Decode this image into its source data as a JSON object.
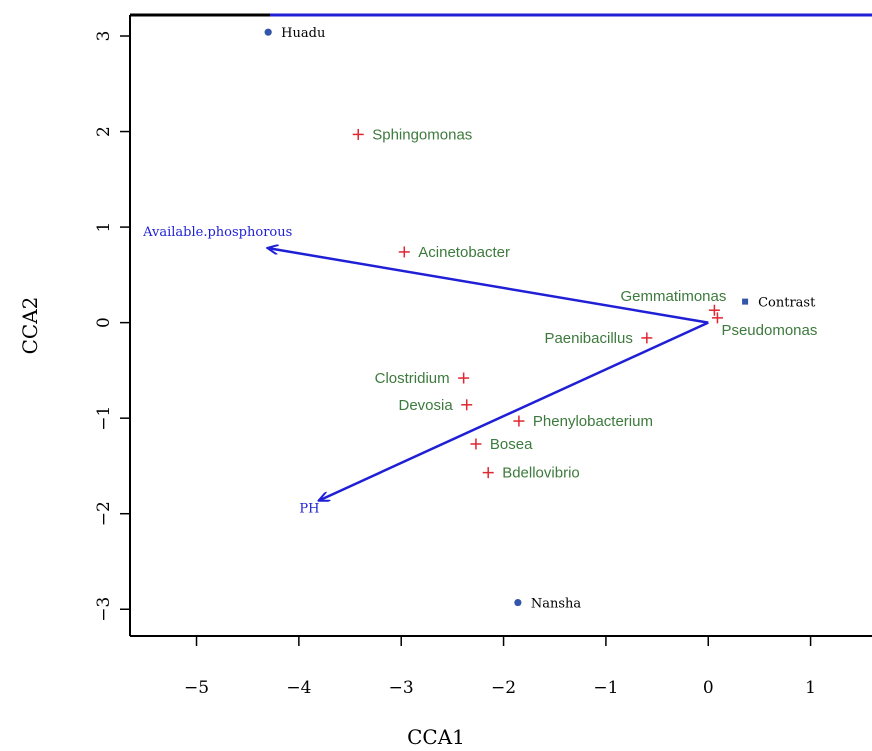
{
  "chart_data": {
    "type": "scatter",
    "title": "",
    "xlabel": "CCA1",
    "ylabel": "CCA2",
    "xlim": [
      -5.65,
      1.6
    ],
    "ylim": [
      -3.28,
      3.22
    ],
    "xticks": [
      -5,
      -4,
      -3,
      -2,
      -1,
      0,
      1
    ],
    "yticks": [
      -3,
      -2,
      -1,
      0,
      1,
      2,
      3
    ],
    "grid": false,
    "colors": {
      "species_marker": "#e0262f",
      "species_text": "#3d7a3d",
      "site_marker": "#3355aa",
      "site_text": "#000000",
      "arrow": "#1f1fd6",
      "axes": "#000000",
      "top_border": "#1f1fd6"
    },
    "species": [
      {
        "label": "Sphingomonas",
        "x": -3.42,
        "y": 1.97,
        "label_side": "right"
      },
      {
        "label": "Acinetobacter",
        "x": -2.97,
        "y": 0.74,
        "label_side": "right"
      },
      {
        "label": "Gemmatimonas",
        "x": 0.06,
        "y": 0.13,
        "label_side": "above-left"
      },
      {
        "label": "Pseudomonas",
        "x": 0.09,
        "y": 0.05,
        "label_side": "below-right"
      },
      {
        "label": "Paenibacillus",
        "x": -0.6,
        "y": -0.16,
        "label_side": "left"
      },
      {
        "label": "Clostridium",
        "x": -2.39,
        "y": -0.58,
        "label_side": "left"
      },
      {
        "label": "Devosia",
        "x": -2.36,
        "y": -0.86,
        "label_side": "left"
      },
      {
        "label": "Phenylobacterium",
        "x": -1.85,
        "y": -1.03,
        "label_side": "right"
      },
      {
        "label": "Bosea",
        "x": -2.27,
        "y": -1.27,
        "label_side": "right"
      },
      {
        "label": "Bdellovibrio",
        "x": -2.15,
        "y": -1.57,
        "label_side": "right"
      }
    ],
    "sites": [
      {
        "label": "Huadu",
        "x": -4.3,
        "y": 3.04,
        "marker": "circle"
      },
      {
        "label": "Contrast",
        "x": 0.36,
        "y": 0.22,
        "marker": "square"
      },
      {
        "label": "Nansha",
        "x": -1.86,
        "y": -2.93,
        "marker": "circle"
      }
    ],
    "env_vectors": [
      {
        "label": "Available.phosphorous",
        "x0": 0,
        "y0": 0,
        "x1": -4.3,
        "y1": 0.78
      },
      {
        "label": "PH",
        "x0": 0,
        "y0": 0,
        "x1": -3.8,
        "y1": -1.86
      }
    ]
  }
}
